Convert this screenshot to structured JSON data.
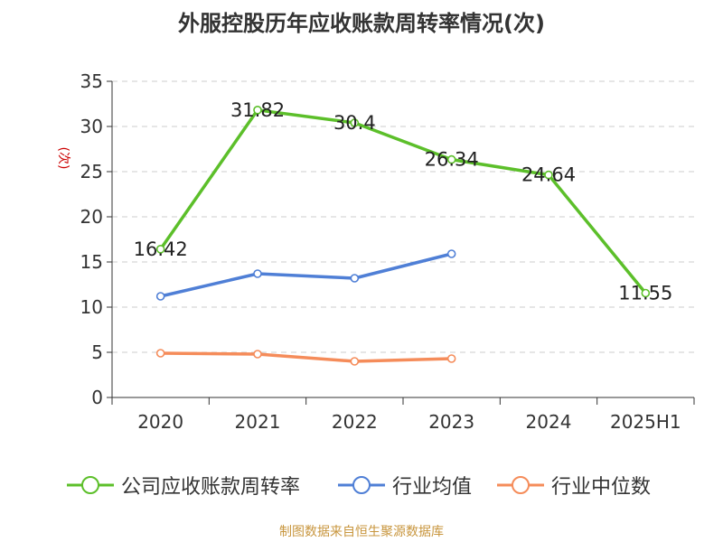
{
  "title": "外服控股历年应收账款周转率情况(次)",
  "source_note": "制图数据来自恒生聚源数据库",
  "chart_data": {
    "type": "line",
    "title": "外服控股历年应收账款周转率情况(次)",
    "ylabel": "(次)",
    "xlabel": "",
    "categories": [
      "2020",
      "2021",
      "2022",
      "2023",
      "2024",
      "2025H1"
    ],
    "ylim": [
      0,
      35
    ],
    "yticks": [
      0,
      5,
      10,
      15,
      20,
      25,
      30,
      35
    ],
    "grid": true,
    "legend_position": "bottom",
    "series": [
      {
        "name": "公司应收账款周转率",
        "color": "#5cbf2a",
        "values": [
          16.42,
          31.82,
          30.4,
          26.34,
          24.64,
          11.55
        ],
        "data_labels": [
          "16.42",
          "31.82",
          "30.4",
          "26.34",
          "24.64",
          "11.55"
        ]
      },
      {
        "name": "行业均值",
        "color": "#4f7fd6",
        "values": [
          11.2,
          13.7,
          13.2,
          15.9,
          null,
          null
        ]
      },
      {
        "name": "行业中位数",
        "color": "#f58c5a",
        "values": [
          4.9,
          4.8,
          4.0,
          4.3,
          null,
          null
        ]
      }
    ]
  }
}
